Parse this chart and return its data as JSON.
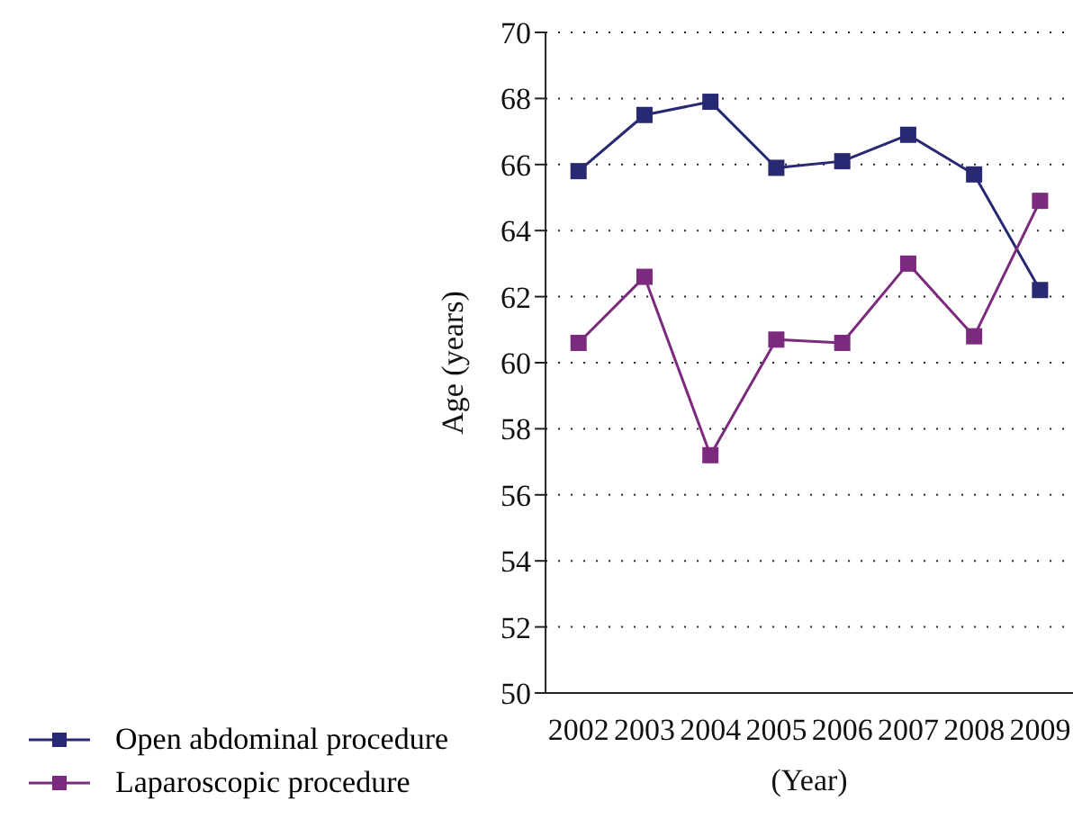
{
  "chart_data": {
    "type": "line",
    "xlabel": "(Year)",
    "ylabel": "Age (years)",
    "categories": [
      "2002",
      "2003",
      "2004",
      "2005",
      "2006",
      "2007",
      "2008",
      "2009"
    ],
    "series": [
      {
        "name": "Open abdominal procedure",
        "color": "#282873",
        "values": [
          65.8,
          67.5,
          67.9,
          65.9,
          66.1,
          66.9,
          65.7,
          62.2
        ]
      },
      {
        "name": "Laparoscopic procedure",
        "color": "#7b2a7e",
        "values": [
          60.6,
          62.6,
          57.2,
          60.7,
          60.6,
          63.0,
          60.8,
          64.9
        ]
      }
    ],
    "ylim": [
      50,
      70
    ],
    "yticks": [
      50,
      52,
      54,
      56,
      58,
      60,
      62,
      64,
      66,
      68,
      70
    ],
    "grid": "y",
    "legend": "bottom left",
    "marker": "square",
    "line_style": "solid"
  }
}
